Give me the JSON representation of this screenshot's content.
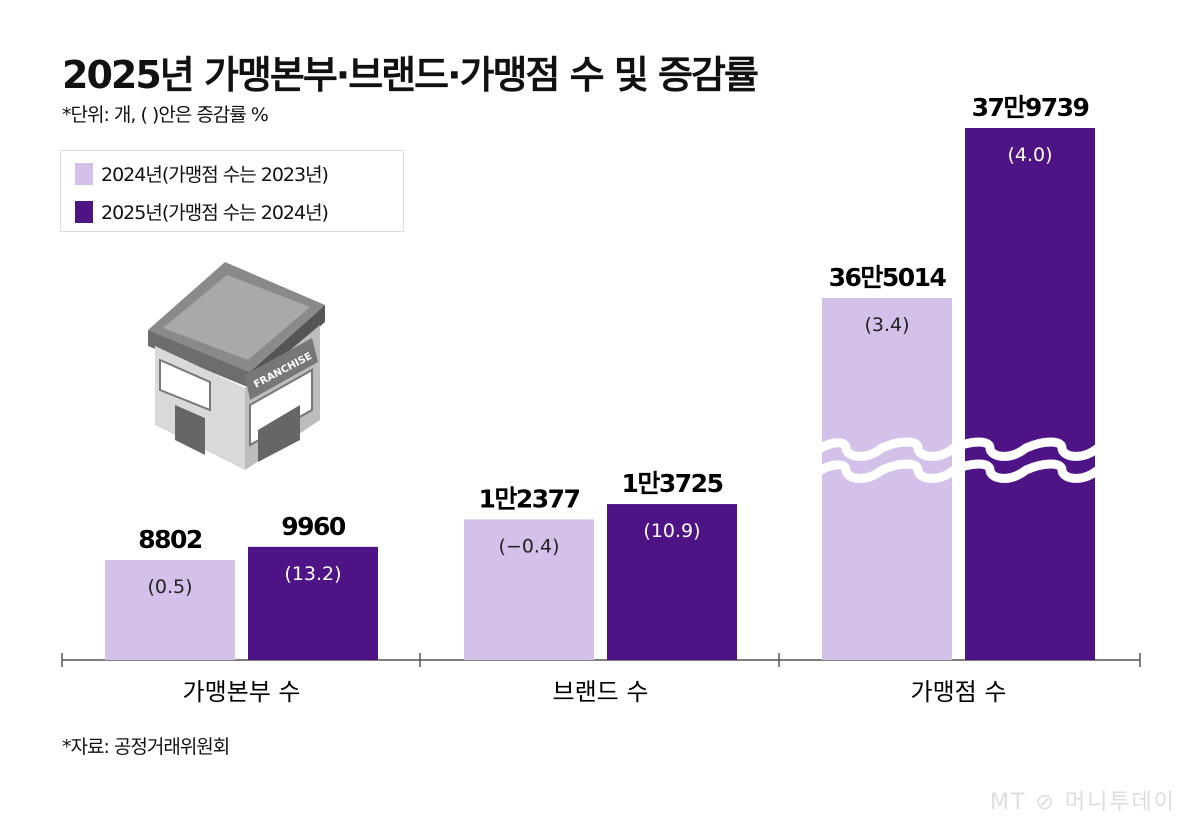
{
  "title": "2025년 가맹본부·브랜드·가맹점 수 및 증감률",
  "unit_note": "*단위: 개, ( )안은 증감률 %",
  "source": "*자료: 공정거래위원회",
  "watermark": "MT 머니투데이",
  "colors": {
    "series_2024": "#d3c1ea",
    "series_2025": "#4e1486"
  },
  "chart_data": {
    "type": "bar",
    "categories": [
      "가맹본부 수",
      "브랜드 수",
      "가맹점 수"
    ],
    "legend_position": "top-left",
    "grid": false,
    "axis_broken_for": "가맹점 수",
    "series": [
      {
        "name": "2024년(가맹점 수는 2023년)",
        "values": [
          8802,
          12377,
          365014
        ],
        "labels": [
          "8802",
          "1만2377",
          "36만5014"
        ],
        "change_pct": [
          "(0.5)",
          "(−0.4)",
          "(3.4)"
        ]
      },
      {
        "name": "2025년(가맹점 수는 2024년)",
        "values": [
          9960,
          13725,
          379739
        ],
        "labels": [
          "9960",
          "1만3725",
          "37만9739"
        ],
        "change_pct": [
          "(13.2)",
          "(10.9)",
          "(4.0)"
        ]
      }
    ]
  }
}
